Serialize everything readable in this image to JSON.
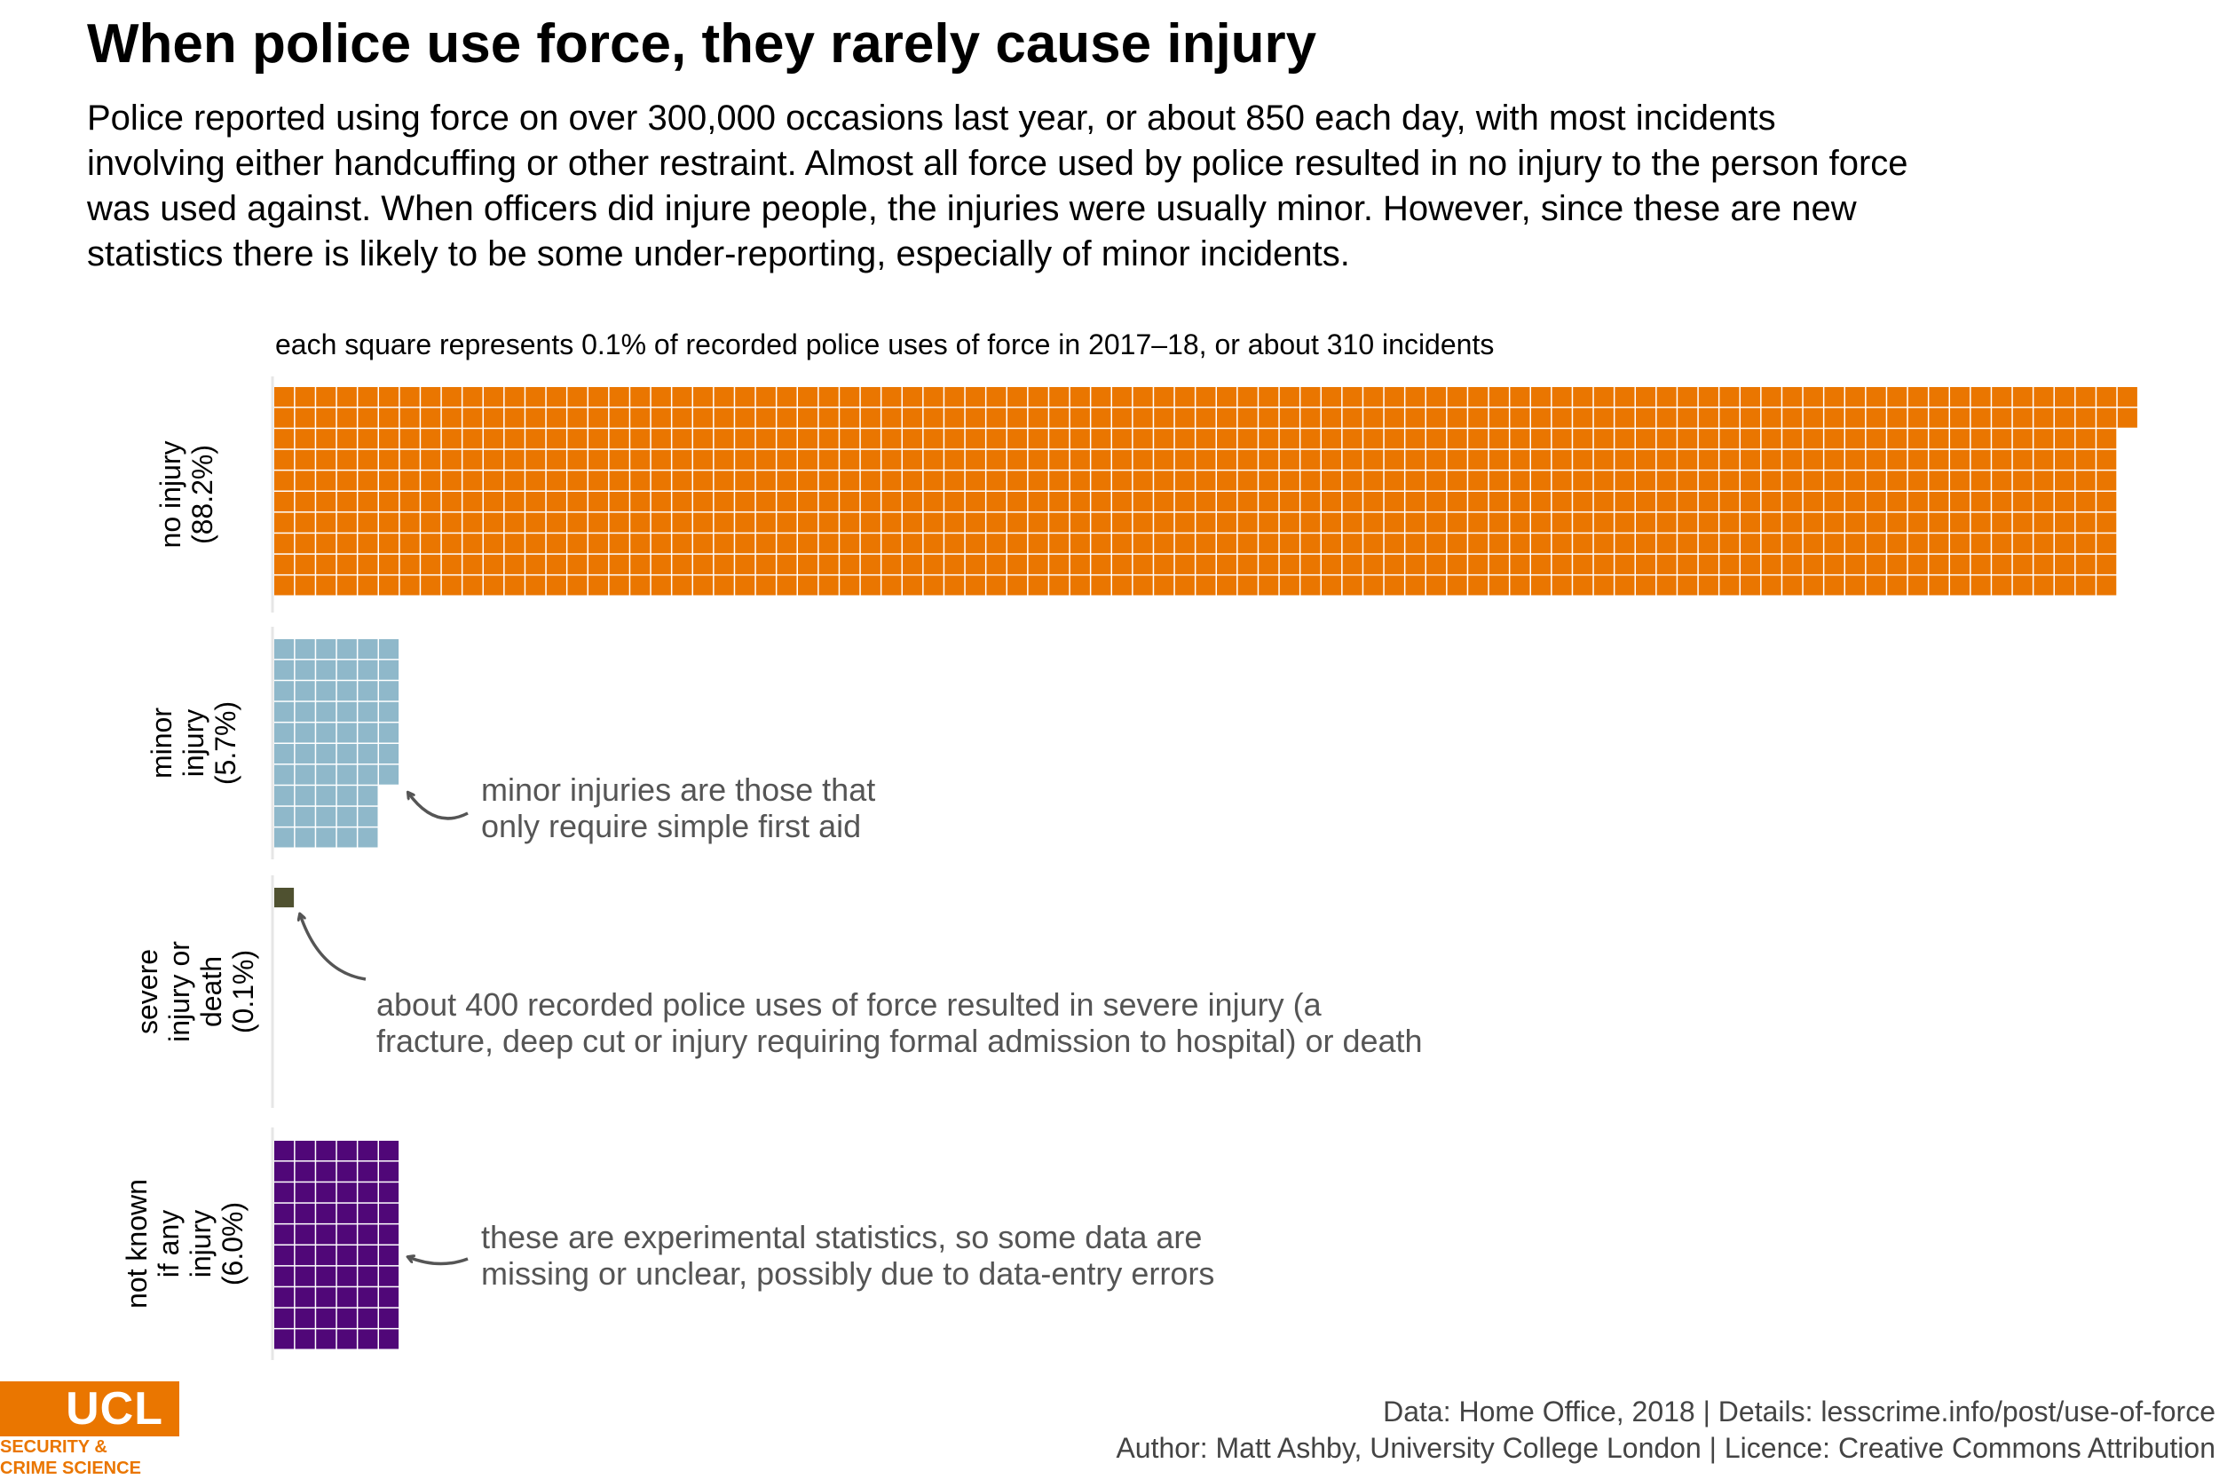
{
  "title": "When police use force, they rarely cause injury",
  "subtitle": "Police reported using force on over 300,000 occasions last year, or about 850 each day, with most incidents involving either handcuffing or other restraint. Almost all force used by police resulted in no injury to the person force was used against. When officers did injure people, the injuries were usually minor. However, since these are new statistics there is likely to be some under-reporting, especially of minor incidents.",
  "caption": "each square represents 0.1% of recorded police uses of force in 2017–18, or about 310 incidents",
  "chart_data": {
    "type": "waffle",
    "unit_percent": 0.1,
    "unit_incidents": 310,
    "series": [
      {
        "name": "no injury",
        "label_lines": [
          "no injury",
          "(88.2%)"
        ],
        "percent": 88.2,
        "squares": 882,
        "color": "#ea7600"
      },
      {
        "name": "minor injury",
        "label_lines": [
          "minor",
          "injury",
          "(5.7%)"
        ],
        "percent": 5.7,
        "squares": 57,
        "color": "#8fb8ca"
      },
      {
        "name": "severe injury or death",
        "label_lines": [
          "severe",
          "injury or",
          "death",
          "(0.1%)"
        ],
        "percent": 0.1,
        "squares": 1,
        "color": "#4f5130"
      },
      {
        "name": "not known if any injury",
        "label_lines": [
          "not known",
          "if any",
          "injury",
          "(6.0%)"
        ],
        "percent": 6.0,
        "squares": 60,
        "color": "#500778"
      }
    ],
    "annotations": [
      {
        "series": "minor injury",
        "lines": [
          "minor injuries are those that",
          "only require simple first aid"
        ]
      },
      {
        "series": "severe injury or death",
        "lines": [
          "about 400 recorded police uses of force resulted in severe injury (a",
          "fracture, deep cut or injury requiring formal admission to hospital) or death"
        ]
      },
      {
        "series": "not known if any injury",
        "lines": [
          "these are experimental statistics, so some data are",
          "missing or unclear, possibly due to data-entry errors"
        ]
      }
    ]
  },
  "footer": {
    "line1": "Data: Home Office, 2018 |  Details: lesscrime.info/post/use-of-force",
    "line2": "Author: Matt Ashby, University College London |  Licence: Creative Commons Attribution"
  },
  "logo": {
    "mark": "UCL",
    "line1": "SECURITY &",
    "line2": "CRIME SCIENCE",
    "color": "#ea7600"
  }
}
